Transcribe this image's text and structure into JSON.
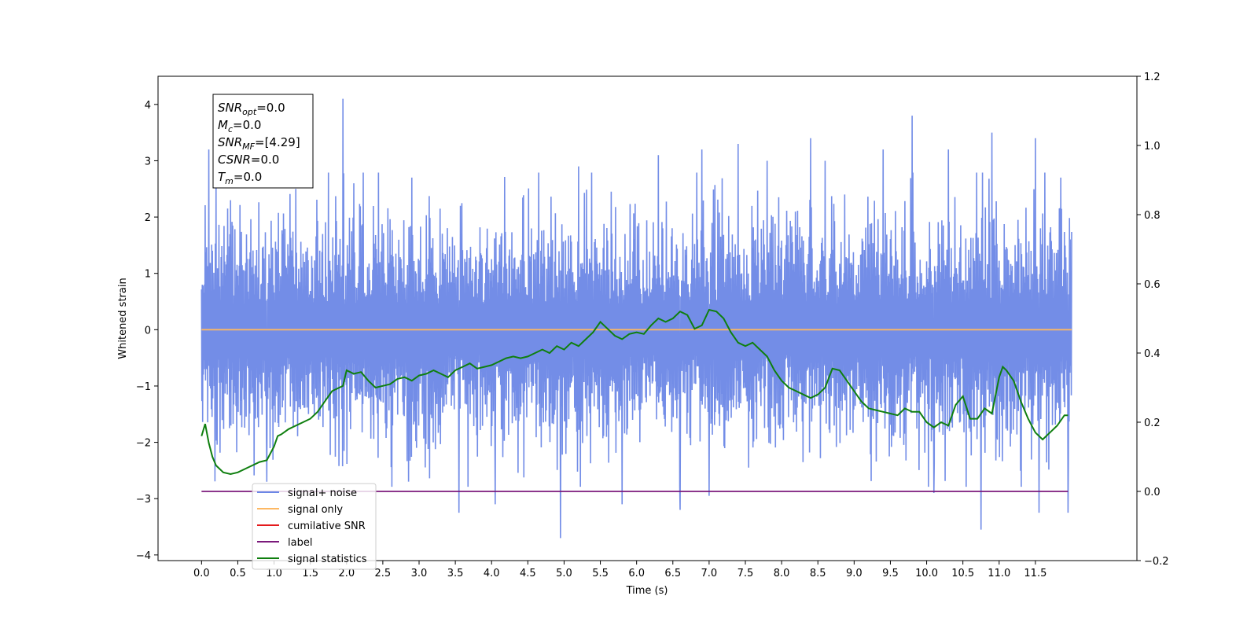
{
  "chart_data": {
    "type": "line",
    "xlabel": "Time (s)",
    "ylabel": "Whitened strain",
    "xlim": [
      -0.6,
      12.9
    ],
    "ylim": [
      -4.1,
      4.5
    ],
    "y2lim": [
      -0.2,
      1.2
    ],
    "x_ticks": [
      0.0,
      0.5,
      1.0,
      1.5,
      2.0,
      2.5,
      3.0,
      3.5,
      4.0,
      4.5,
      5.0,
      5.5,
      6.0,
      6.5,
      7.0,
      7.5,
      8.0,
      8.5,
      9.0,
      9.5,
      10.0,
      10.5,
      11.0,
      11.5
    ],
    "x_tick_labels": [
      "0.0",
      "0.5",
      "1.0",
      "1.5",
      "2.0",
      "2.5",
      "3.0",
      "3.5",
      "4.0",
      "4.5",
      "5.0",
      "5.5",
      "6.0",
      "6.5",
      "7.0",
      "7.5",
      "8.0",
      "8.5",
      "9.0",
      "9.5",
      "10.0",
      "10.5",
      "11.0",
      "11.5"
    ],
    "y_ticks": [
      -4,
      -3,
      -2,
      -1,
      0,
      1,
      2,
      3,
      4
    ],
    "y_tick_labels": [
      "−4",
      "−3",
      "−2",
      "−1",
      "0",
      "1",
      "2",
      "3",
      "4"
    ],
    "y2_ticks": [
      -0.2,
      0.0,
      0.2,
      0.4,
      0.6,
      0.8,
      1.0,
      1.2
    ],
    "y2_tick_labels": [
      "−0.2",
      "0.0",
      "0.2",
      "0.4",
      "0.6",
      "0.8",
      "1.0",
      "1.2"
    ],
    "grid": false,
    "legend_position": "lower-left",
    "series": [
      {
        "name": "signal+ noise",
        "color": "#6b87e6",
        "axis": "left",
        "x_range": [
          0.0,
          12.0
        ],
        "band_top": 1.5,
        "band_bottom": -1.5,
        "spikes": [
          [
            0.1,
            3.2
          ],
          [
            0.2,
            2.6
          ],
          [
            0.4,
            2.3
          ],
          [
            0.9,
            -2.7
          ],
          [
            1.3,
            2.5
          ],
          [
            1.95,
            4.1
          ],
          [
            2.1,
            2.6
          ],
          [
            2.9,
            2.7
          ],
          [
            3.55,
            -3.25
          ],
          [
            4.05,
            -3.1
          ],
          [
            4.95,
            -3.7
          ],
          [
            5.2,
            2.9
          ],
          [
            5.8,
            -3.1
          ],
          [
            6.3,
            3.1
          ],
          [
            6.6,
            -3.2
          ],
          [
            6.9,
            3.2
          ],
          [
            7.0,
            -2.95
          ],
          [
            7.4,
            3.3
          ],
          [
            7.8,
            3.0
          ],
          [
            8.4,
            3.4
          ],
          [
            8.6,
            3.0
          ],
          [
            9.4,
            3.2
          ],
          [
            9.8,
            3.8
          ],
          [
            10.1,
            -2.9
          ],
          [
            10.3,
            3.2
          ],
          [
            10.9,
            3.5
          ],
          [
            10.75,
            -3.55
          ],
          [
            11.5,
            3.4
          ],
          [
            11.55,
            -3.25
          ],
          [
            11.85,
            2.7
          ],
          [
            11.95,
            -3.25
          ]
        ]
      },
      {
        "name": "signal only",
        "color": "#fdb863",
        "axis": "left",
        "x": [
          0.0,
          12.0
        ],
        "y": [
          0.0,
          0.0
        ]
      },
      {
        "name": "cumilative SNR",
        "color": "#e41a1c",
        "axis": "left",
        "x": [],
        "y": []
      },
      {
        "name": "label",
        "color": "#7b1a7b",
        "axis": "right",
        "x": [
          0.0,
          11.95
        ],
        "y": [
          0.0,
          0.0
        ]
      },
      {
        "name": "signal statistics",
        "color": "#0f7f0f",
        "axis": "right",
        "x": [
          0.0,
          0.05,
          0.1,
          0.15,
          0.2,
          0.3,
          0.4,
          0.5,
          0.6,
          0.7,
          0.8,
          0.9,
          1.0,
          1.05,
          1.1,
          1.2,
          1.3,
          1.4,
          1.5,
          1.6,
          1.7,
          1.8,
          1.9,
          1.95,
          2.0,
          2.1,
          2.2,
          2.3,
          2.4,
          2.5,
          2.6,
          2.7,
          2.8,
          2.9,
          3.0,
          3.1,
          3.2,
          3.3,
          3.4,
          3.5,
          3.6,
          3.7,
          3.8,
          3.9,
          4.0,
          4.1,
          4.2,
          4.3,
          4.4,
          4.5,
          4.6,
          4.7,
          4.8,
          4.9,
          5.0,
          5.1,
          5.2,
          5.3,
          5.4,
          5.5,
          5.6,
          5.7,
          5.8,
          5.9,
          6.0,
          6.1,
          6.2,
          6.3,
          6.4,
          6.5,
          6.6,
          6.7,
          6.8,
          6.9,
          7.0,
          7.1,
          7.2,
          7.3,
          7.4,
          7.5,
          7.6,
          7.7,
          7.8,
          7.9,
          8.0,
          8.1,
          8.2,
          8.3,
          8.4,
          8.5,
          8.6,
          8.7,
          8.8,
          8.9,
          9.0,
          9.1,
          9.2,
          9.3,
          9.4,
          9.5,
          9.6,
          9.7,
          9.8,
          9.9,
          10.0,
          10.1,
          10.2,
          10.3,
          10.4,
          10.5,
          10.6,
          10.7,
          10.8,
          10.9,
          11.0,
          11.05,
          11.1,
          11.2,
          11.3,
          11.4,
          11.5,
          11.6,
          11.7,
          11.8,
          11.9,
          11.95
        ],
        "y": [
          0.16,
          0.195,
          0.14,
          0.1,
          0.075,
          0.055,
          0.05,
          0.055,
          0.065,
          0.075,
          0.085,
          0.09,
          0.13,
          0.16,
          0.165,
          0.18,
          0.19,
          0.2,
          0.21,
          0.23,
          0.26,
          0.29,
          0.3,
          0.305,
          0.35,
          0.34,
          0.345,
          0.32,
          0.3,
          0.305,
          0.31,
          0.325,
          0.33,
          0.32,
          0.335,
          0.34,
          0.35,
          0.34,
          0.33,
          0.35,
          0.36,
          0.37,
          0.355,
          0.36,
          0.365,
          0.375,
          0.385,
          0.39,
          0.385,
          0.39,
          0.4,
          0.41,
          0.4,
          0.42,
          0.41,
          0.43,
          0.42,
          0.44,
          0.46,
          0.49,
          0.47,
          0.45,
          0.44,
          0.455,
          0.46,
          0.455,
          0.48,
          0.5,
          0.49,
          0.5,
          0.52,
          0.51,
          0.47,
          0.48,
          0.525,
          0.52,
          0.5,
          0.46,
          0.43,
          0.42,
          0.43,
          0.41,
          0.39,
          0.35,
          0.32,
          0.3,
          0.29,
          0.28,
          0.27,
          0.28,
          0.3,
          0.355,
          0.35,
          0.32,
          0.29,
          0.26,
          0.24,
          0.235,
          0.23,
          0.225,
          0.22,
          0.24,
          0.23,
          0.23,
          0.2,
          0.185,
          0.2,
          0.19,
          0.25,
          0.275,
          0.21,
          0.21,
          0.24,
          0.225,
          0.33,
          0.36,
          0.35,
          0.32,
          0.26,
          0.21,
          0.17,
          0.15,
          0.17,
          0.19,
          0.22,
          0.22
        ]
      }
    ],
    "info_box": {
      "lines": [
        {
          "name": "SNR",
          "sub": "opt",
          "value": "=0.0"
        },
        {
          "name": "M",
          "sub": "c",
          "value": "=0.0"
        },
        {
          "name": "SNR",
          "sub": "MF",
          "value": "=[4.29]"
        },
        {
          "name": "CSNR",
          "sub": "",
          "value": "=0.0"
        },
        {
          "name": "T",
          "sub": "m",
          "value": "=0.0"
        }
      ]
    }
  }
}
